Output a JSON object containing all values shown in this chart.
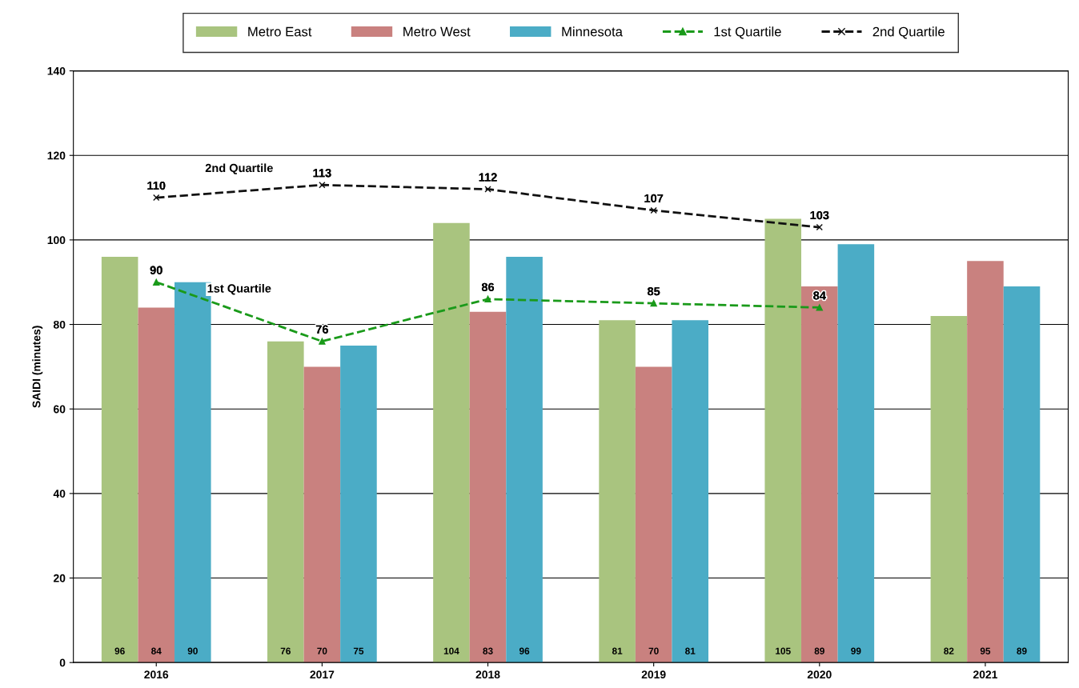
{
  "chart_data": {
    "type": "bar",
    "ylabel": "SAIDI (minutes)",
    "categories": [
      "2016",
      "2017",
      "2018",
      "2019",
      "2020",
      "2021"
    ],
    "series": [
      {
        "name": "Metro East",
        "color": "#a9c47f",
        "values": [
          96,
          76,
          104,
          81,
          105,
          82
        ]
      },
      {
        "name": "Metro West",
        "color": "#c9817f",
        "values": [
          84,
          70,
          83,
          70,
          89,
          95
        ]
      },
      {
        "name": "Minnesota",
        "color": "#4bacc6",
        "values": [
          90,
          75,
          96,
          81,
          99,
          89
        ]
      },
      {
        "name": "1st Quartile",
        "type": "line",
        "color": "#1a9a1a",
        "marker": "triangle",
        "line_style": "dashed",
        "values": [
          90,
          76,
          86,
          85,
          84,
          null
        ]
      },
      {
        "name": "2nd Quartile",
        "type": "line",
        "color": "#111111",
        "marker": "cross",
        "line_style": "dashed",
        "values": [
          110,
          113,
          112,
          107,
          103,
          null
        ]
      }
    ],
    "annotations": [
      "2nd Quartile",
      "1st Quartile"
    ],
    "ylim": [
      0,
      140
    ],
    "yticks": [
      0,
      20,
      40,
      60,
      80,
      100,
      120,
      140
    ],
    "grid": "y",
    "legend": "top",
    "data_labels": true
  }
}
